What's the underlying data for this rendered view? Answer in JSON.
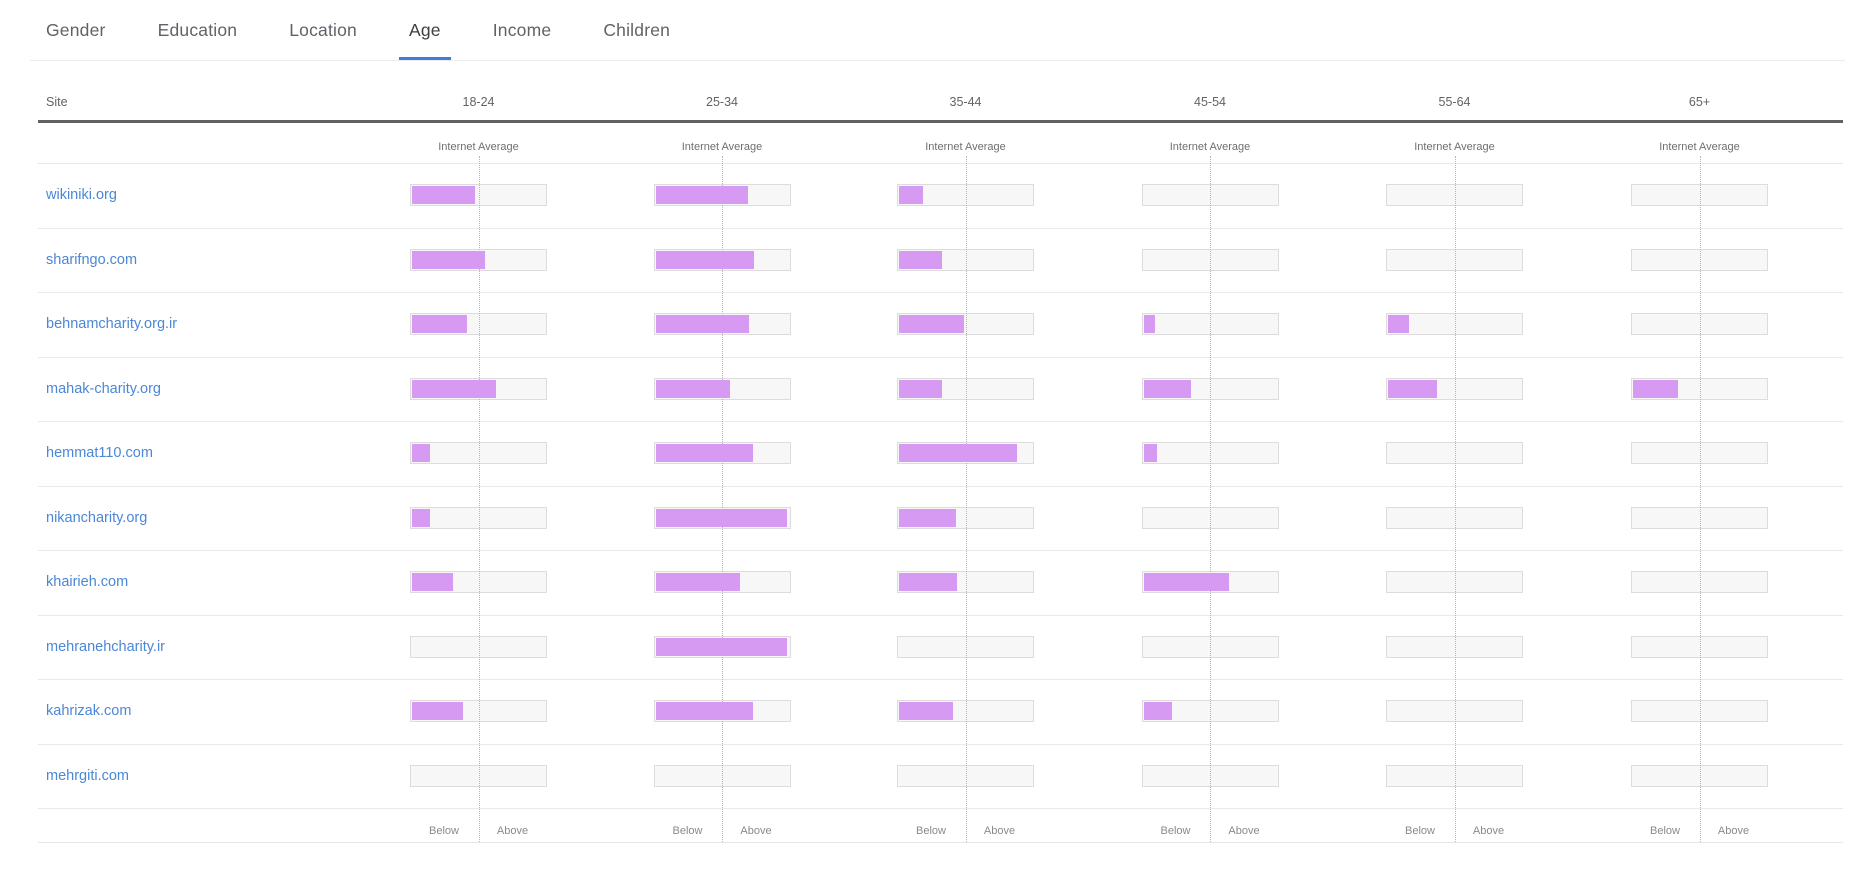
{
  "tabs": {
    "items": [
      {
        "label": "Gender",
        "active": false
      },
      {
        "label": "Education",
        "active": false
      },
      {
        "label": "Location",
        "active": false
      },
      {
        "label": "Age",
        "active": true
      },
      {
        "label": "Income",
        "active": false
      },
      {
        "label": "Children",
        "active": false
      }
    ]
  },
  "table": {
    "site_header": "Site",
    "columns": [
      "18-24",
      "25-34",
      "35-44",
      "45-54",
      "55-64",
      "65+"
    ],
    "internet_average_label": "Internet Average",
    "below_label": "Below",
    "above_label": "Above",
    "rows": [
      {
        "site": "wikiniki.org",
        "values": [
          0.47,
          0.685,
          0.18,
          0,
          0,
          0
        ]
      },
      {
        "site": "sharifngo.com",
        "values": [
          0.54,
          0.73,
          0.32,
          0,
          0,
          0
        ]
      },
      {
        "site": "behnamcharity.org.ir",
        "values": [
          0.41,
          0.695,
          0.48,
          0.085,
          0.155,
          0
        ]
      },
      {
        "site": "mahak-charity.org",
        "values": [
          0.625,
          0.55,
          0.32,
          0.355,
          0.365,
          0.33
        ]
      },
      {
        "site": "hemmat110.com",
        "values": [
          0.13,
          0.72,
          0.875,
          0.1,
          0,
          0
        ]
      },
      {
        "site": "nikancharity.org",
        "values": [
          0.13,
          0.975,
          0.42,
          0,
          0,
          0
        ]
      },
      {
        "site": "khairieh.com",
        "values": [
          0.305,
          0.625,
          0.43,
          0.635,
          0,
          0
        ]
      },
      {
        "site": "mehranehcharity.ir",
        "values": [
          0,
          0.975,
          0,
          0,
          0,
          0
        ]
      },
      {
        "site": "kahrizak.com",
        "values": [
          0.38,
          0.72,
          0.4,
          0.21,
          0,
          0
        ]
      },
      {
        "site": "mehrgiti.com",
        "values": [
          0,
          0,
          0,
          0,
          0,
          0
        ]
      }
    ]
  },
  "colors": {
    "bar_purple": "#d69af3",
    "link_blue": "#4b87d7",
    "active_tab_underline": "#3d7edb",
    "header_rule": "#616161"
  },
  "chart_data": {
    "type": "bar",
    "title": "Audience demographics by Age (bar length relative to Internet Average; 0.5 of track = Internet Average)",
    "categories": [
      "18-24",
      "25-34",
      "35-44",
      "45-54",
      "55-64",
      "65+"
    ],
    "series": [
      {
        "name": "wikiniki.org",
        "values": [
          0.47,
          0.685,
          0.18,
          0,
          0,
          0
        ]
      },
      {
        "name": "sharifngo.com",
        "values": [
          0.54,
          0.73,
          0.32,
          0,
          0,
          0
        ]
      },
      {
        "name": "behnamcharity.org.ir",
        "values": [
          0.41,
          0.695,
          0.48,
          0.085,
          0.155,
          0
        ]
      },
      {
        "name": "mahak-charity.org",
        "values": [
          0.625,
          0.55,
          0.32,
          0.355,
          0.365,
          0.33
        ]
      },
      {
        "name": "hemmat110.com",
        "values": [
          0.13,
          0.72,
          0.875,
          0.1,
          0,
          0
        ]
      },
      {
        "name": "nikancharity.org",
        "values": [
          0.13,
          0.975,
          0.42,
          0,
          0,
          0
        ]
      },
      {
        "name": "khairieh.com",
        "values": [
          0.305,
          0.625,
          0.43,
          0.635,
          0,
          0
        ]
      },
      {
        "name": "mehranehcharity.ir",
        "values": [
          0,
          0.975,
          0,
          0,
          0,
          0
        ]
      },
      {
        "name": "kahrizak.com",
        "values": [
          0.38,
          0.72,
          0.4,
          0.21,
          0,
          0
        ]
      },
      {
        "name": "mehrgiti.com",
        "values": [
          0,
          0,
          0,
          0,
          0,
          0
        ]
      }
    ],
    "xlim": [
      0,
      1
    ],
    "reference_line": 0.5,
    "annotations": [
      "Internet Average",
      "Below",
      "Above"
    ],
    "legend_position": "none",
    "grid": false
  }
}
